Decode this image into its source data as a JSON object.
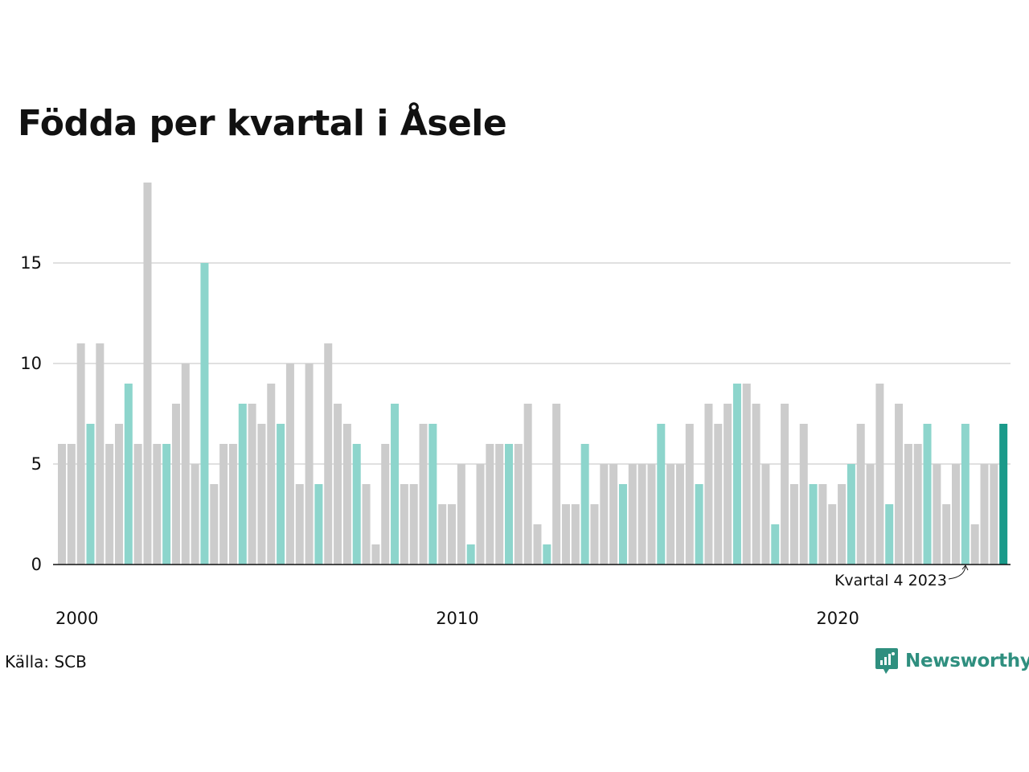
{
  "title": "Födda per kvartal i Åsele",
  "source": "Källa: SCB",
  "brand": "Newsworthy",
  "colors": {
    "bar_default": "#cccccc",
    "bar_q4": "#8dd5cc",
    "bar_latest": "#1a9a8a",
    "brand": "#2f8f7f",
    "grid": "#e0e0e0"
  },
  "chart_data": {
    "type": "bar",
    "title": "Födda per kvartal i Åsele",
    "xlabel": "",
    "ylabel": "",
    "ylim": [
      0,
      19
    ],
    "yticks": [
      0,
      5,
      10,
      15
    ],
    "xticks": [
      "2000",
      "2010",
      "2020"
    ],
    "grid": true,
    "highlight_rule": "quarter 4 of every year highlighted; latest quarter darker",
    "annotation": "Kvartal 4 2023",
    "values": [
      6,
      6,
      11,
      7,
      11,
      6,
      7,
      9,
      6,
      19,
      6,
      6,
      8,
      10,
      5,
      15,
      4,
      6,
      6,
      8,
      8,
      7,
      9,
      7,
      10,
      4,
      10,
      4,
      11,
      8,
      7,
      6,
      4,
      1,
      6,
      8,
      4,
      4,
      7,
      7,
      3,
      3,
      5,
      1,
      5,
      6,
      6,
      6,
      6,
      8,
      2,
      1,
      8,
      3,
      3,
      6,
      3,
      5,
      5,
      4,
      5,
      5,
      5,
      7,
      5,
      5,
      7,
      4,
      8,
      7,
      8,
      9,
      9,
      8,
      5,
      2,
      8,
      4,
      7,
      4,
      4,
      3,
      4,
      5,
      7,
      5,
      9,
      3,
      8,
      6,
      6,
      7,
      5,
      3,
      5,
      7,
      2,
      5,
      5,
      7
    ],
    "start_year": 2000
  }
}
